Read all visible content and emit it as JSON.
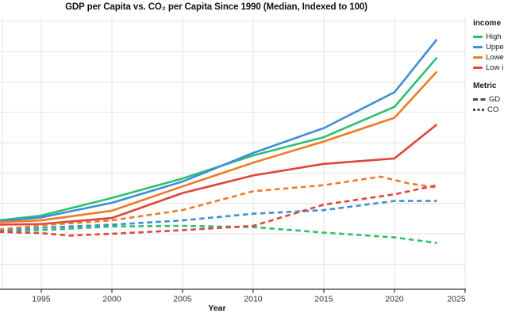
{
  "title": "GDP per Capita vs. CO₂ per Capita Since 1990 (Median, Indexed to 100)",
  "colors": {
    "green": "#2CC06C",
    "blue": "#3E8FD6",
    "orange": "#EC7B26",
    "red": "#E0443C",
    "metric_gray": "#4D4D4D",
    "gridline": "#E3E3E3",
    "axis": "#333333"
  },
  "legend": {
    "income_header": "income",
    "income_items": [
      {
        "label": "High",
        "color": "green"
      },
      {
        "label": "Uppe",
        "color": "blue"
      },
      {
        "label": "Lowe",
        "color": "orange"
      },
      {
        "label": "Low i",
        "color": "red"
      }
    ],
    "metric_header": "Metric",
    "metric_items": [
      {
        "label": "GD",
        "style": "longdash"
      },
      {
        "label": "CO",
        "style": "dash"
      }
    ]
  },
  "x_axis": {
    "label": "Year"
  },
  "chart_data": {
    "type": "line",
    "title": "GDP per Capita vs. CO₂ per Capita Since 1990 (Median, Indexed to 100)",
    "xlabel": "Year",
    "ylabel": "",
    "index_base": 100,
    "grid": true,
    "legend_position": "right",
    "x_visible_range": [
      1992,
      2025
    ],
    "x_gridlines": [
      1992.25,
      1995,
      2000,
      2005,
      2010,
      2015,
      2020,
      2025
    ],
    "x_ticks": [
      {
        "year": 1995,
        "label": "1995"
      },
      {
        "year": 2000,
        "label": "2000"
      },
      {
        "year": 2005,
        "label": "2005"
      },
      {
        "year": 2010,
        "label": "2010"
      },
      {
        "year": 2015,
        "label": "2015"
      },
      {
        "year": 2020,
        "label": "2020"
      },
      {
        "year": 2025,
        "label": "2025"
      }
    ],
    "y_gridlines": [
      50,
      100,
      150,
      200,
      250,
      300,
      350,
      400,
      450
    ],
    "y_tick_labels_visible": false,
    "series": [
      {
        "id": "gdp-high-income",
        "metric": "GDP",
        "color": "green",
        "dash": "solid",
        "points": [
          [
            1992,
            122
          ],
          [
            1995,
            130
          ],
          [
            2000,
            159
          ],
          [
            2005,
            191
          ],
          [
            2010,
            229
          ],
          [
            2015,
            259
          ],
          [
            2020,
            309
          ],
          [
            2023,
            390
          ]
        ]
      },
      {
        "id": "gdp-upper-middle-income",
        "metric": "GDP",
        "color": "blue",
        "dash": "solid",
        "points": [
          [
            1992,
            121
          ],
          [
            1995,
            127
          ],
          [
            2000,
            151
          ],
          [
            2005,
            186
          ],
          [
            2010,
            233
          ],
          [
            2015,
            274
          ],
          [
            2020,
            333
          ],
          [
            2023,
            420
          ]
        ]
      },
      {
        "id": "gdp-lower-middle-income",
        "metric": "GDP",
        "color": "orange",
        "dash": "solid",
        "points": [
          [
            1992,
            119
          ],
          [
            1995,
            122
          ],
          [
            2000,
            138
          ],
          [
            2005,
            178
          ],
          [
            2010,
            217
          ],
          [
            2015,
            252
          ],
          [
            2020,
            291
          ],
          [
            2023,
            367
          ]
        ]
      },
      {
        "id": "gdp-low-income",
        "metric": "GDP",
        "color": "red",
        "dash": "solid",
        "points": [
          [
            1992,
            115
          ],
          [
            1995,
            116
          ],
          [
            2000,
            126
          ],
          [
            2005,
            167
          ],
          [
            2010,
            196
          ],
          [
            2015,
            215
          ],
          [
            2020,
            224
          ],
          [
            2023,
            280
          ]
        ]
      },
      {
        "id": "co2-high-income",
        "metric": "CO2",
        "color": "green",
        "dash": "dashed",
        "points": [
          [
            1992,
            104
          ],
          [
            1995,
            106
          ],
          [
            2000,
            112
          ],
          [
            2005,
            113
          ],
          [
            2010,
            111
          ],
          [
            2015,
            102
          ],
          [
            2020,
            94
          ],
          [
            2023,
            85
          ]
        ]
      },
      {
        "id": "co2-upper-middle-income",
        "metric": "CO2",
        "color": "blue",
        "dash": "dashed",
        "points": [
          [
            1992,
            105
          ],
          [
            1995,
            110
          ],
          [
            2000,
            115
          ],
          [
            2005,
            122
          ],
          [
            2010,
            133
          ],
          [
            2015,
            139
          ],
          [
            2020,
            154
          ],
          [
            2023,
            154
          ]
        ]
      },
      {
        "id": "co2-lower-middle-income",
        "metric": "CO2",
        "color": "orange",
        "dash": "dashed",
        "points": [
          [
            1992,
            107
          ],
          [
            1995,
            114
          ],
          [
            2000,
            122
          ],
          [
            2005,
            139
          ],
          [
            2010,
            170
          ],
          [
            2015,
            180
          ],
          [
            2019,
            194
          ],
          [
            2021,
            183
          ],
          [
            2023,
            176
          ]
        ]
      },
      {
        "id": "co2-low-income",
        "metric": "CO2",
        "color": "red",
        "dash": "dashed",
        "points": [
          [
            1992,
            103
          ],
          [
            1995,
            101
          ],
          [
            1997,
            97
          ],
          [
            2000,
            100
          ],
          [
            2005,
            106
          ],
          [
            2010,
            113
          ],
          [
            2015,
            148
          ],
          [
            2020,
            165
          ],
          [
            2023,
            180
          ]
        ]
      }
    ]
  }
}
